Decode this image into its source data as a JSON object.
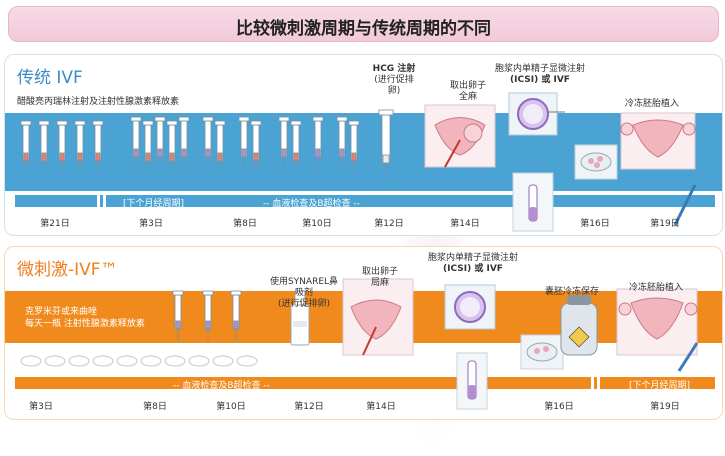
{
  "title": "比较微刺激周期与传统周期的不同",
  "traditional": {
    "heading": "传统 IVF",
    "drug_note": "醋酸亮丙瑞林注射及注射性腺激素释放素",
    "hcg_title": "HCG 注射",
    "hcg_sub": "(进行促排卵)",
    "retrieval_title": "取出卵子",
    "retrieval_sub": "全麻",
    "icsi_title": "胞浆内单精子显微注射",
    "icsi_sub": "(ICSI) 或 IVF",
    "transfer": "冷冻胚胎植入",
    "bar_text_1": "[下个月经周期]",
    "bar_text_2": "--      血液检查及B超检查      --",
    "days": [
      "第21日",
      "第3日",
      "第8日",
      "第10日",
      "第12日",
      "第14日",
      "第16日",
      "第19日"
    ]
  },
  "mini": {
    "heading": "微刺激-IVF™",
    "drug_note_1": "克罗米芬或来曲唑",
    "drug_note_2": "每天一瓶 注射性腺激素释放素",
    "synarel_title": "使用SYNAREL鼻吸剂",
    "synarel_sub": "(进行促排卵)",
    "retrieval_title": "取出卵子",
    "retrieval_sub": "局麻",
    "icsi_title": "胞浆内单精子显微注射",
    "icsi_sub": "(ICSI) 或 IVF",
    "freeze": "囊胚冷冻保存",
    "transfer": "冷冻胚胎植入",
    "bar_text_1": "--      血液检查及B超检查      --",
    "bar_text_2": "[下个月经周期]",
    "days": [
      "第3日",
      "第8日",
      "第10日",
      "第12日",
      "第14日",
      "第16日",
      "第19日"
    ]
  },
  "colors": {
    "blue_band": "#4aa3d3",
    "orange_band": "#f08a1c",
    "title_pink": "#f2c9da"
  }
}
